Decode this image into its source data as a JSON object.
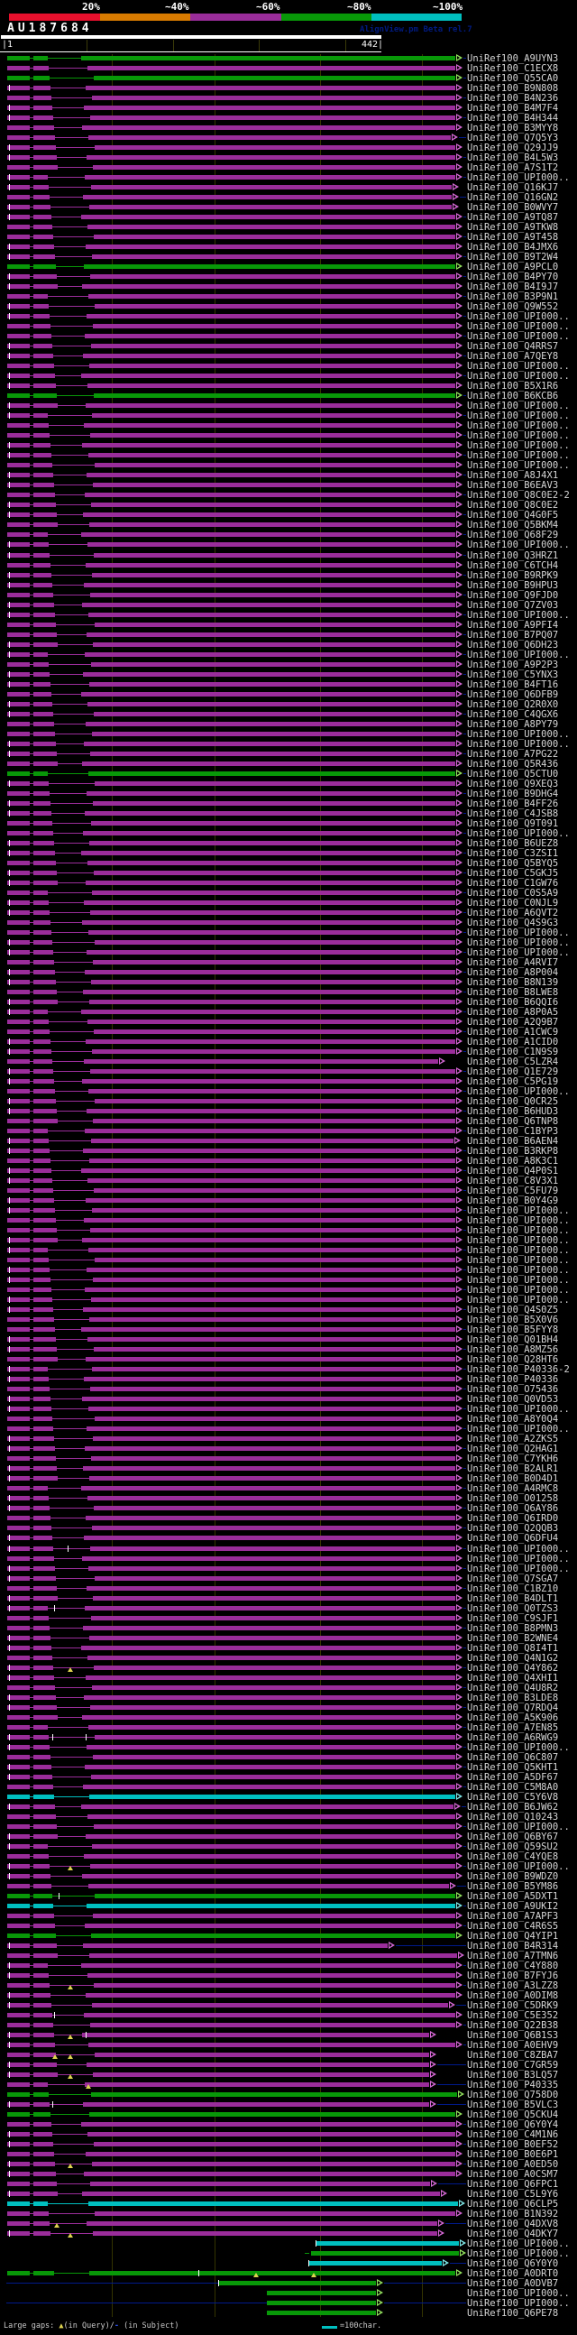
{
  "chart_data": {
    "type": "alignment-map",
    "title": "AU187684",
    "watermark": "AlignView.pm Beta rel.7",
    "query_length": 442,
    "x_axis": {
      "start": "|1",
      "end": "442|",
      "ruler_ticks": [
        100,
        200,
        300,
        400
      ]
    },
    "identity_scale": {
      "labels": [
        "20%",
        "~40%",
        "~60%",
        "~80%",
        "~100%"
      ],
      "colors": [
        "#e8102d",
        "#d97b00",
        "#9a2d9a",
        "#089808",
        "#00bfbf"
      ]
    },
    "hit_prefix": "UniRef100_",
    "hit_color_codes": {
      "m": "magenta ~60%",
      "g": "green ~80%",
      "c": "cyan ~100%"
    },
    "hits": [
      {
        "id": "A9UYN3",
        "c": "g"
      },
      {
        "id": "C1ECX8"
      },
      {
        "id": "Q55CA0",
        "c": "g"
      },
      {
        "id": "B9N808"
      },
      {
        "id": "B4N236"
      },
      {
        "id": "B4M7F4"
      },
      {
        "id": "B4H344"
      },
      {
        "id": "B3MYY8"
      },
      {
        "id": "Q7Q5Y3",
        "e": 500
      },
      {
        "id": "Q29JJ9"
      },
      {
        "id": "B4L5W3"
      },
      {
        "id": "A7S1T2"
      },
      {
        "id": "UPI000.."
      },
      {
        "id": "Q16KJ7",
        "e": 501
      },
      {
        "id": "Q16GN2",
        "e": 501
      },
      {
        "id": "B0WVY7",
        "e": 501
      },
      {
        "id": "A9TQ87"
      },
      {
        "id": "A9TKW8"
      },
      {
        "id": "A9T458"
      },
      {
        "id": "B4JMX6"
      },
      {
        "id": "B9T2W4"
      },
      {
        "id": "A9PCL0",
        "c": "g"
      },
      {
        "id": "B4PY70"
      },
      {
        "id": "B4I9J7"
      },
      {
        "id": "B3P9N1"
      },
      {
        "id": "Q9W552"
      },
      {
        "id": "UPI000.."
      },
      {
        "id": "UPI000.."
      },
      {
        "id": "UPI000.."
      },
      {
        "id": "Q4RRS7"
      },
      {
        "id": "A7QEY8"
      },
      {
        "id": "UPI000.."
      },
      {
        "id": "UPI000.."
      },
      {
        "id": "B5X1R6"
      },
      {
        "id": "B6KCB6",
        "c": "g"
      },
      {
        "id": "UPI000.."
      },
      {
        "id": "UPI000.."
      },
      {
        "id": "UPI000.."
      },
      {
        "id": "UPI000.."
      },
      {
        "id": "UPI000.."
      },
      {
        "id": "UPI000.."
      },
      {
        "id": "UPI000.."
      },
      {
        "id": "A8J4X1"
      },
      {
        "id": "B6EAV3"
      },
      {
        "id": "Q8C0E2-2"
      },
      {
        "id": "Q8C0E2"
      },
      {
        "id": "Q4G0F5"
      },
      {
        "id": "Q5BKM4"
      },
      {
        "id": "Q68F29"
      },
      {
        "id": "UPI000.."
      },
      {
        "id": "Q3HRZ1"
      },
      {
        "id": "C6TCH4"
      },
      {
        "id": "B9RPK9"
      },
      {
        "id": "B9HPU3"
      },
      {
        "id": "Q9FJD0"
      },
      {
        "id": "Q7ZV03"
      },
      {
        "id": "UPI000.."
      },
      {
        "id": "A9PFI4"
      },
      {
        "id": "B7PQ07"
      },
      {
        "id": "Q6DH23"
      },
      {
        "id": "UPI000.."
      },
      {
        "id": "A9P2P3"
      },
      {
        "id": "C5YNX3"
      },
      {
        "id": "B4FT16"
      },
      {
        "id": "Q6DFB9"
      },
      {
        "id": "Q2R0X0"
      },
      {
        "id": "C4QGX6"
      },
      {
        "id": "A8PY79"
      },
      {
        "id": "UPI000.."
      },
      {
        "id": "UPI000.."
      },
      {
        "id": "A7PG22"
      },
      {
        "id": "Q5R436"
      },
      {
        "id": "Q5CTU0",
        "c": "g"
      },
      {
        "id": "Q9XEQ3"
      },
      {
        "id": "B9DHG4"
      },
      {
        "id": "B4FF26"
      },
      {
        "id": "C4JSB8"
      },
      {
        "id": "Q9T091"
      },
      {
        "id": "UPI000.."
      },
      {
        "id": "B6UEZ8"
      },
      {
        "id": "C3ZSI1"
      },
      {
        "id": "Q5BYQ5"
      },
      {
        "id": "C5GKJ5"
      },
      {
        "id": "C1GW76"
      },
      {
        "id": "C0S5A9"
      },
      {
        "id": "C0NJL9"
      },
      {
        "id": "A6QVT2"
      },
      {
        "id": "Q4S9G3"
      },
      {
        "id": "UPI000.."
      },
      {
        "id": "UPI000.."
      },
      {
        "id": "UPI000.."
      },
      {
        "id": "A4RVI7"
      },
      {
        "id": "A8P004"
      },
      {
        "id": "B8N139"
      },
      {
        "id": "B8LWE8"
      },
      {
        "id": "B6QQI6"
      },
      {
        "id": "A8P0A5"
      },
      {
        "id": "A2Q9B7"
      },
      {
        "id": "A1CWC9"
      },
      {
        "id": "A1CID0"
      },
      {
        "id": "C1N9S9"
      },
      {
        "id": "C5LZR4",
        "e": 486
      },
      {
        "id": "Q1E729"
      },
      {
        "id": "C5PG19"
      },
      {
        "id": "UPI000.."
      },
      {
        "id": "Q0CR25"
      },
      {
        "id": "B6HUD3"
      },
      {
        "id": "Q6TNP8"
      },
      {
        "id": "C1BYP3"
      },
      {
        "id": "B6AEN4",
        "e": 503
      },
      {
        "id": "B3RKP8"
      },
      {
        "id": "A8K3C1"
      },
      {
        "id": "Q4P0S1"
      },
      {
        "id": "C8V3X1"
      },
      {
        "id": "C5FU79"
      },
      {
        "id": "B0Y4G9"
      },
      {
        "id": "UPI000.."
      },
      {
        "id": "UPI000.."
      },
      {
        "id": "UPI000.."
      },
      {
        "id": "UPI000.."
      },
      {
        "id": "UPI000.."
      },
      {
        "id": "UPI000.."
      },
      {
        "id": "UPI000.."
      },
      {
        "id": "UPI000.."
      },
      {
        "id": "UPI000.."
      },
      {
        "id": "UPI000.."
      },
      {
        "id": "Q4S0Z5"
      },
      {
        "id": "B5X0V6"
      },
      {
        "id": "B5FYY8"
      },
      {
        "id": "Q01BH4"
      },
      {
        "id": "A8MZ56"
      },
      {
        "id": "Q28HT6"
      },
      {
        "id": "P40336-2"
      },
      {
        "id": "P40336"
      },
      {
        "id": "O75436"
      },
      {
        "id": "Q0VD53"
      },
      {
        "id": "UPI000.."
      },
      {
        "id": "A8Y0Q4"
      },
      {
        "id": "UPI000.."
      },
      {
        "id": "A2ZKS5"
      },
      {
        "id": "Q2HAG1"
      },
      {
        "id": "C7YKH6"
      },
      {
        "id": "B2ALR1"
      },
      {
        "id": "B0D4D1"
      },
      {
        "id": "A4RMC8"
      },
      {
        "id": "O01258"
      },
      {
        "id": "Q6AY86"
      },
      {
        "id": "Q6IRD0"
      },
      {
        "id": "Q2QQB3"
      },
      {
        "id": "Q6DFU4"
      },
      {
        "id": "UPI000..",
        "m": [
          [
            75,
            "w"
          ]
        ]
      },
      {
        "id": "UPI000.."
      },
      {
        "id": "UPI000.."
      },
      {
        "id": "Q7SGA7"
      },
      {
        "id": "C1BZ10"
      },
      {
        "id": "B4DLT1"
      },
      {
        "id": "Q0TZS3",
        "m": [
          [
            60,
            "w"
          ]
        ]
      },
      {
        "id": "C9SJF1"
      },
      {
        "id": "B8PMN3"
      },
      {
        "id": "B2WNE4"
      },
      {
        "id": "Q8I4T1"
      },
      {
        "id": "Q4N1G2"
      },
      {
        "id": "Q4Y862",
        "m": [
          [
            75,
            "t"
          ]
        ]
      },
      {
        "id": "Q4XHI1"
      },
      {
        "id": "Q4U8R2"
      },
      {
        "id": "B3LDE8"
      },
      {
        "id": "Q7RDQ4"
      },
      {
        "id": "A5K906"
      },
      {
        "id": "A7EN85"
      },
      {
        "id": "A6RWG9",
        "m": [
          [
            58,
            "w"
          ],
          [
            95,
            "w"
          ]
        ]
      },
      {
        "id": "UPI000.."
      },
      {
        "id": "Q6C807"
      },
      {
        "id": "Q5KHT1"
      },
      {
        "id": "A5DF67"
      },
      {
        "id": "C5M8A0"
      },
      {
        "id": "C5Y6V8",
        "c": "c"
      },
      {
        "id": "B6JW62",
        "e": 503
      },
      {
        "id": "Q10243"
      },
      {
        "id": "UPI000.."
      },
      {
        "id": "Q6BY67"
      },
      {
        "id": "Q59SU2"
      },
      {
        "id": "C4YQE8"
      },
      {
        "id": "UPI000..",
        "m": [
          [
            75,
            "t"
          ]
        ]
      },
      {
        "id": "B9WDZ0"
      },
      {
        "id": "B5YM86",
        "e": 498
      },
      {
        "id": "A5DXT1",
        "c": "g",
        "m": [
          [
            65,
            "w"
          ]
        ]
      },
      {
        "id": "A9UKI2",
        "c": "c"
      },
      {
        "id": "A7APF3"
      },
      {
        "id": "C4R6S5"
      },
      {
        "id": "Q4YIP1",
        "c": "g"
      },
      {
        "id": "B4R314",
        "e": 430
      },
      {
        "id": "A7TMN6",
        "e": 507
      },
      {
        "id": "C4Y880"
      },
      {
        "id": "B7FYJ6"
      },
      {
        "id": "A3LZZ8",
        "m": [
          [
            75,
            "t"
          ]
        ]
      },
      {
        "id": "A0DIM8"
      },
      {
        "id": "C5DRK9",
        "e": 497
      },
      {
        "id": "C5E352",
        "m": [
          [
            60,
            "w"
          ]
        ]
      },
      {
        "id": "Q22B38"
      },
      {
        "id": "Q6B1S3",
        "e": 476,
        "m": [
          [
            75,
            "t"
          ],
          [
            95,
            "w"
          ]
        ]
      },
      {
        "id": "A0EHV9"
      },
      {
        "id": "C8ZBA7",
        "e": 476,
        "m": [
          [
            58,
            "t"
          ],
          [
            75,
            "t"
          ]
        ]
      },
      {
        "id": "C7GR59",
        "e": 476
      },
      {
        "id": "B3LQ57",
        "e": 476,
        "m": [
          [
            75,
            "t"
          ]
        ]
      },
      {
        "id": "P40335",
        "e": 476,
        "m": [
          [
            95,
            "t"
          ]
        ]
      },
      {
        "id": "Q758D0",
        "c": "g",
        "e": 507
      },
      {
        "id": "B5VLC3",
        "e": 476,
        "m": [
          [
            58,
            "w"
          ]
        ]
      },
      {
        "id": "Q5CKU4",
        "c": "g"
      },
      {
        "id": "Q6Y0Y4"
      },
      {
        "id": "C4M1N6"
      },
      {
        "id": "B0EF52"
      },
      {
        "id": "B0E6P1"
      },
      {
        "id": "A0ED50",
        "m": [
          [
            75,
            "t"
          ]
        ]
      },
      {
        "id": "A0CSM7"
      },
      {
        "id": "Q6FPC1",
        "e": 477
      },
      {
        "id": "C5L9Y6",
        "e": 488
      },
      {
        "id": "Q6CLP5",
        "c": "c",
        "e": 508
      },
      {
        "id": "B1N392"
      },
      {
        "id": "Q4DXV8",
        "e": 485,
        "m": [
          [
            60,
            "t"
          ]
        ]
      },
      {
        "id": "Q4DKY7",
        "e": 485,
        "m": [
          [
            75,
            "t"
          ]
        ]
      },
      {
        "id": "UPI000..",
        "c": "c",
        "s": 350,
        "e": 509,
        "m": [
          [
            350,
            "w"
          ]
        ]
      },
      {
        "id": "UPI000..",
        "c": "g",
        "s": 345,
        "e": 509,
        "m": [
          [
            338,
            "d"
          ]
        ]
      },
      {
        "id": "Q6Y0Y0",
        "c": "c",
        "s": 342,
        "e": 490,
        "m": [
          [
            342,
            "w"
          ]
        ]
      },
      {
        "id": "A0DRT0",
        "c": "g",
        "e": 505,
        "m": [
          [
            220,
            "w"
          ],
          [
            281,
            "t"
          ],
          [
            345,
            "t"
          ]
        ]
      },
      {
        "id": "A0DVB7",
        "c": "g",
        "s": 242,
        "e": 417,
        "ld": 1,
        "m": [
          [
            242,
            "w"
          ]
        ]
      },
      {
        "id": "UPI000..",
        "c": "g",
        "s": 296,
        "e": 417
      },
      {
        "id": "UPI000..",
        "c": "g",
        "s": 296,
        "e": 417,
        "ld": 1
      },
      {
        "id": "Q6PE78",
        "c": "g",
        "s": 296,
        "e": 417
      }
    ]
  },
  "legend": {
    "prefix": "Large gaps: ",
    "query_gap_symbol": "▲",
    "mid": "(in Query)/",
    "subject_gap_symbol": "-",
    "suffix": " (in Subject)",
    "scale_label": "=100char."
  },
  "colors": {
    "magenta_hit": "#9a2d9a",
    "green_hit": "#089808",
    "cyan_hit": "#00bfbf",
    "subject_overhang": "#001a8c",
    "gridline": "#343400",
    "label_text": "#d6d6d6",
    "gap_triangle": "#ddd24f"
  }
}
